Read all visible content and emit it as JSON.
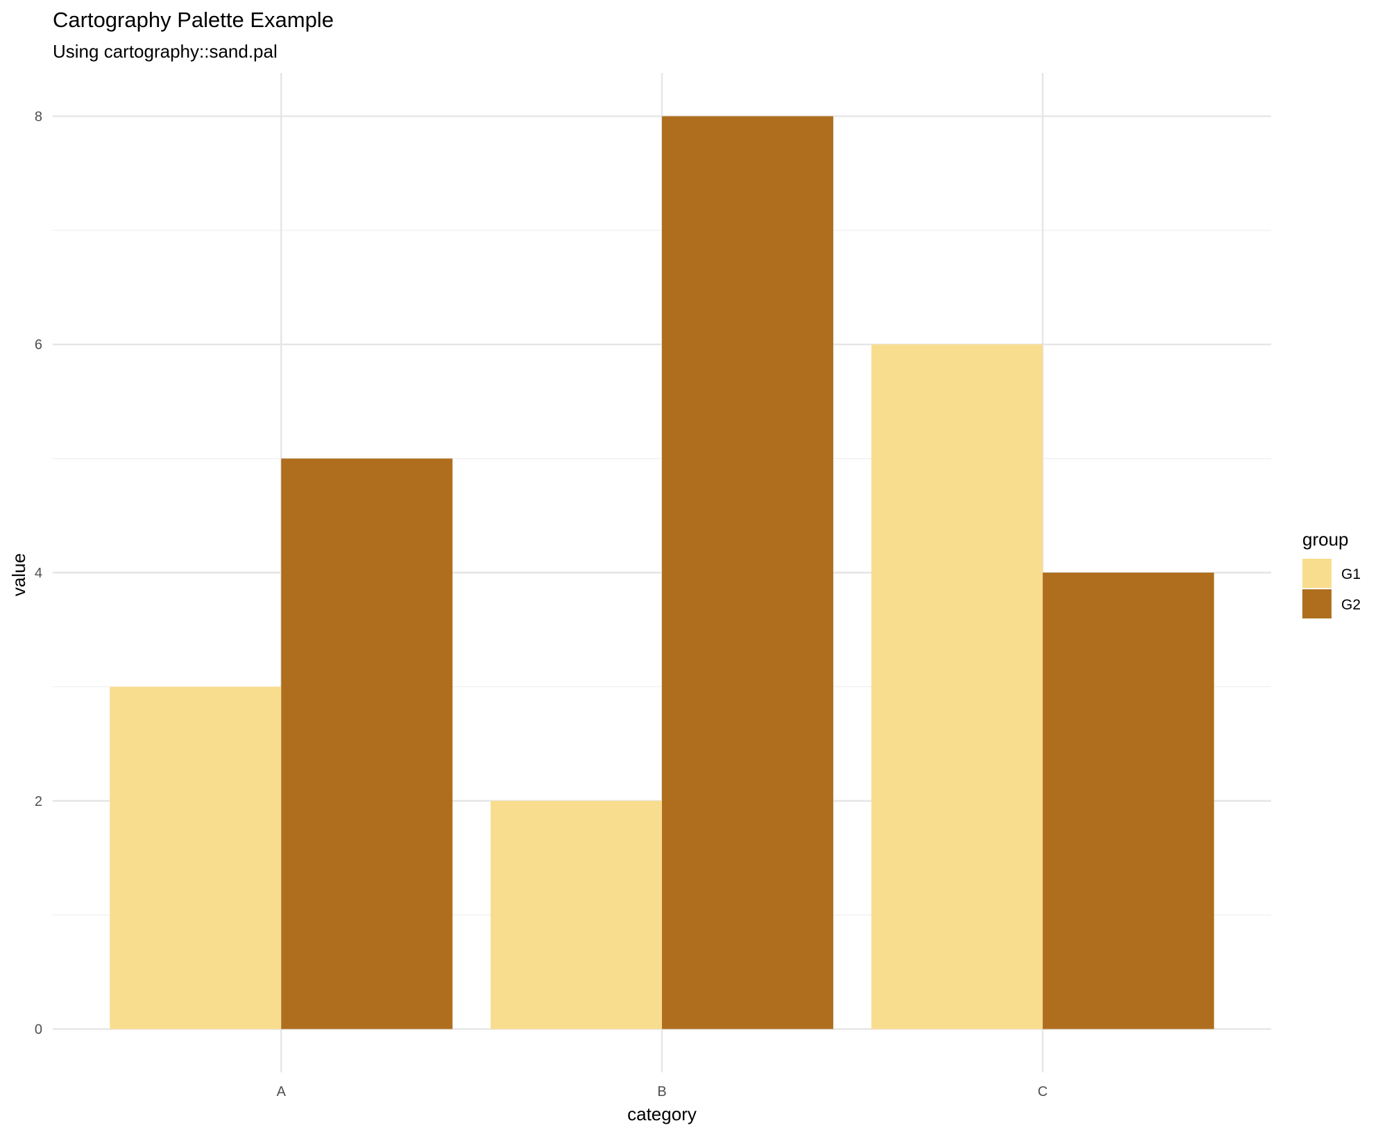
{
  "chart_data": {
    "type": "bar",
    "title": "Cartography Palette Example",
    "subtitle": "Using cartography::sand.pal",
    "xlabel": "category",
    "ylabel": "value",
    "categories": [
      "A",
      "B",
      "C"
    ],
    "series": [
      {
        "name": "G1",
        "values": [
          3,
          2,
          6
        ],
        "color": "#F9DD8E"
      },
      {
        "name": "G2",
        "values": [
          5,
          8,
          4
        ],
        "color": "#AF6E1E"
      }
    ],
    "ylim": [
      -0.38,
      8.38
    ],
    "yticks": [
      0,
      2,
      4,
      6,
      8
    ],
    "grid": true,
    "legend": {
      "title": "group",
      "position": "right"
    },
    "colors": {
      "grid": "#e5e5e5",
      "tick_text": "#4d4d4d",
      "background": "#ffffff"
    }
  }
}
